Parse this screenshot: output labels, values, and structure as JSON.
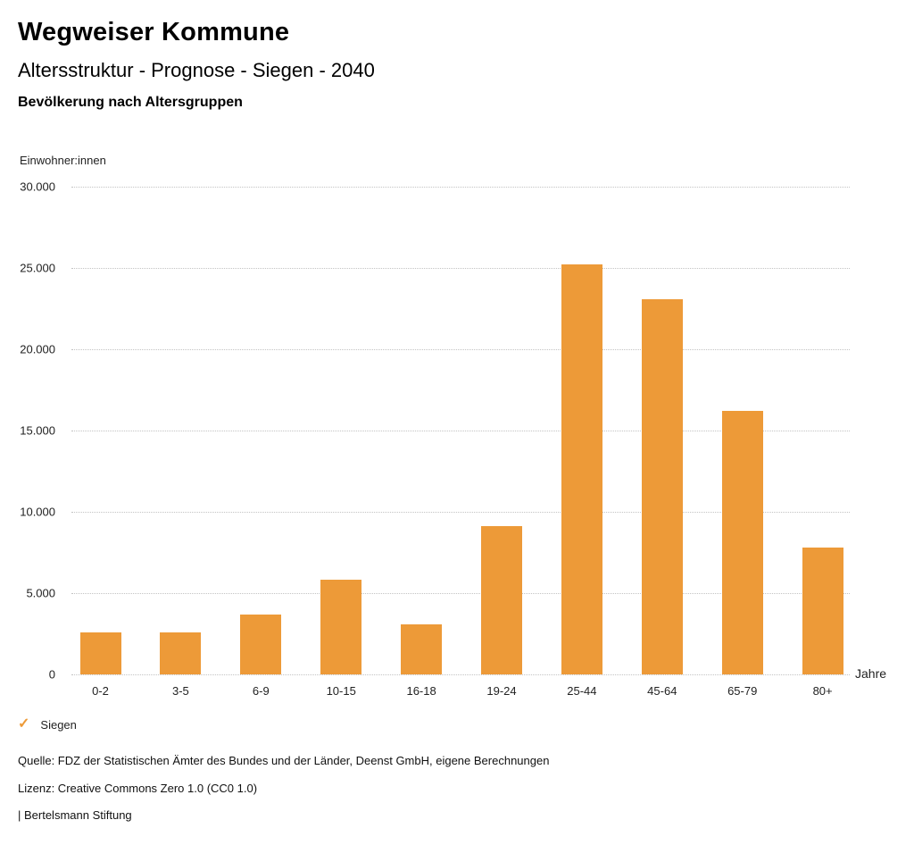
{
  "header": {
    "title": "Wegweiser Kommune",
    "subtitle": "Altersstruktur - Prognose - Siegen - 2040",
    "caption": "Bevölkerung nach Altersgruppen"
  },
  "chart_data": {
    "type": "bar",
    "title": "Altersstruktur - Prognose - Siegen - 2040",
    "subtitle": "Bevölkerung nach Altersgruppen",
    "categories": [
      "0-2",
      "3-5",
      "6-9",
      "10-15",
      "16-18",
      "19-24",
      "25-44",
      "45-64",
      "65-79",
      "80+"
    ],
    "values": [
      2600,
      2600,
      3700,
      5800,
      3100,
      9100,
      25200,
      23100,
      16200,
      7800
    ],
    "xlabel": "Jahre",
    "ylabel": "Einwohner:innen",
    "ylim": [
      0,
      30000
    ],
    "ytick_step": 5000,
    "ytick_labels": [
      "0",
      "5.000",
      "10.000",
      "15.000",
      "20.000",
      "25.000",
      "30.000"
    ],
    "grid": "horizontal-dotted",
    "gridline_color": "#c3c3c3",
    "bar_color": "#ED9A38",
    "legend": {
      "position": "bottom-left",
      "items": [
        {
          "label": "Siegen",
          "marker": "check-icon",
          "color": "#ED9A38"
        }
      ]
    }
  },
  "footer": {
    "source": "Quelle: FDZ der Statistischen Ämter des Bundes und der Länder, Deenst GmbH, eigene Berechnungen",
    "license": "Lizenz: Creative Commons Zero 1.0 (CC0 1.0)",
    "attribution": "| Bertelsmann Stiftung"
  }
}
